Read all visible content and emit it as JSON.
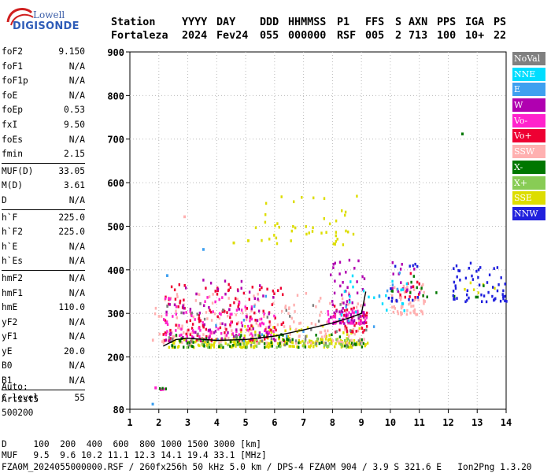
{
  "logo": {
    "line1": "Lowell",
    "line2": "DIGISONDE"
  },
  "header": {
    "labels": [
      "Station",
      "YYYY",
      "DAY",
      "DDD",
      "HHMMSS",
      "P1",
      "FFS",
      "S",
      "AXN",
      "PPS",
      "IGA",
      "PS"
    ],
    "values": [
      "Fortaleza",
      "2024",
      "Fev24",
      "055",
      "000000",
      "RSF",
      "005",
      "2",
      "713",
      "100",
      "10+",
      "22"
    ]
  },
  "params": [
    {
      "key": "foF2",
      "value": "9.150"
    },
    {
      "key": "foF1",
      "value": "N/A"
    },
    {
      "key": "foF1p",
      "value": "N/A"
    },
    {
      "key": "foE",
      "value": "N/A"
    },
    {
      "key": "foEp",
      "value": "0.53"
    },
    {
      "key": "fxI",
      "value": "9.50"
    },
    {
      "key": "foEs",
      "value": "N/A"
    },
    {
      "key": "fmin",
      "value": "2.15"
    },
    {
      "key": "MUF(D)",
      "value": "33.05"
    },
    {
      "key": "M(D)",
      "value": "3.61"
    },
    {
      "key": "D",
      "value": "N/A"
    },
    {
      "key": "h`F",
      "value": "225.0"
    },
    {
      "key": "h`F2",
      "value": "225.0"
    },
    {
      "key": "h`E",
      "value": "N/A"
    },
    {
      "key": "h`Es",
      "value": "N/A"
    },
    {
      "key": "hmF2",
      "value": "N/A"
    },
    {
      "key": "hmF1",
      "value": "N/A"
    },
    {
      "key": "hmE",
      "value": "110.0"
    },
    {
      "key": "yF2",
      "value": "N/A"
    },
    {
      "key": "yF1",
      "value": "N/A"
    },
    {
      "key": "yE",
      "value": "20.0"
    },
    {
      "key": "B0",
      "value": "N/A"
    },
    {
      "key": "B1",
      "value": "N/A"
    },
    {
      "key": "C-level",
      "value": "55"
    }
  ],
  "auto": {
    "line1": "Auto:",
    "line2": "Artist5",
    "line3": "500200"
  },
  "footer": {
    "d_row": "D     100  200  400  600  800 1000 1500 3000 [km]",
    "muf_row": "MUF   9.5  9.6 10.2 11.1 12.3 14.1 19.4 33.1 [MHz]",
    "info_row": "FZA0M_2024055000000.RSF / 260fx256h 50 kHz 5.0 km / DPS-4 FZA0M 904 / 3.9 S 321.6 E   Ion2Png 1.3.20"
  },
  "legend": [
    {
      "label": "NoVal",
      "color": "#808080"
    },
    {
      "label": "NNE",
      "color": "#00ddff"
    },
    {
      "label": "E",
      "color": "#3fa0f0"
    },
    {
      "label": "W",
      "color": "#b000b0"
    },
    {
      "label": "Vo-",
      "color": "#ff22cc"
    },
    {
      "label": "Vo+",
      "color": "#ee0033"
    },
    {
      "label": "SSW",
      "color": "#ffb0b0"
    },
    {
      "label": "X-",
      "color": "#007700"
    },
    {
      "label": "X+",
      "color": "#88cc55"
    },
    {
      "label": "SSE",
      "color": "#dddd00"
    },
    {
      "label": "NNW",
      "color": "#2020dd"
    }
  ],
  "chart_data": {
    "type": "scatter",
    "xlim": [
      1,
      14
    ],
    "ylim": [
      80,
      900
    ],
    "xticks": [
      "1",
      "2",
      "3",
      "4",
      "5",
      "6",
      "7",
      "8",
      "9",
      "10",
      "11",
      "12",
      "13",
      "14"
    ],
    "yticks": [
      "80",
      "200",
      "300",
      "400",
      "500",
      "600",
      "700",
      "800",
      "900"
    ],
    "trace_line": [
      [
        2.15,
        225
      ],
      [
        2.6,
        240
      ],
      [
        3.0,
        243
      ],
      [
        4.0,
        238
      ],
      [
        5.0,
        240
      ],
      [
        6.0,
        248
      ],
      [
        7.0,
        262
      ],
      [
        8.0,
        278
      ],
      [
        8.6,
        290
      ],
      [
        9.0,
        300
      ],
      [
        9.15,
        350
      ]
    ],
    "clusters": [
      {
        "name": "SSE",
        "color": "#dddd00",
        "f": [
          2.3,
          9.2
        ],
        "h": [
          225,
          245
        ],
        "n": 170
      },
      {
        "name": "SSE",
        "color": "#dddd00",
        "f": [
          4.5,
          9.0
        ],
        "h": [
          235,
          275
        ],
        "n": 80
      },
      {
        "name": "SSE",
        "color": "#dddd00",
        "f": [
          5.3,
          8.9
        ],
        "h": [
          460,
          580
        ],
        "n": 45
      },
      {
        "name": "SSE",
        "color": "#dddd00",
        "f": [
          12.4,
          13.6
        ],
        "h": [
          345,
          385
        ],
        "n": 6
      },
      {
        "name": "SSW",
        "color": "#ffb0b0",
        "f": [
          1.7,
          9.1
        ],
        "h": [
          235,
          350
        ],
        "n": 190
      },
      {
        "name": "SSW",
        "color": "#ffb0b0",
        "f": [
          10.0,
          11.2
        ],
        "h": [
          300,
          370
        ],
        "n": 55
      },
      {
        "name": "Vo+",
        "color": "#ee0033",
        "f": [
          2.1,
          6.3
        ],
        "h": [
          240,
          370
        ],
        "n": 130
      },
      {
        "name": "Vo+",
        "color": "#ee0033",
        "f": [
          8.0,
          9.2
        ],
        "h": [
          260,
          320
        ],
        "n": 40
      },
      {
        "name": "Vo+",
        "color": "#ee0033",
        "f": [
          10.3,
          11.1
        ],
        "h": [
          340,
          400
        ],
        "n": 12
      },
      {
        "name": "Vo-",
        "color": "#ff22cc",
        "f": [
          2.1,
          6.0
        ],
        "h": [
          250,
          340
        ],
        "n": 80
      },
      {
        "name": "Vo-",
        "color": "#ff22cc",
        "f": [
          7.8,
          9.2
        ],
        "h": [
          280,
          310
        ],
        "n": 50
      },
      {
        "name": "Vo-",
        "color": "#ff22cc",
        "f": [
          1.8,
          2.2
        ],
        "h": [
          128,
          133
        ],
        "n": 6
      },
      {
        "name": "W",
        "color": "#b000b0",
        "f": [
          2.2,
          6.0
        ],
        "h": [
          240,
          380
        ],
        "n": 70
      },
      {
        "name": "W",
        "color": "#b000b0",
        "f": [
          7.9,
          9.1
        ],
        "h": [
          280,
          430
        ],
        "n": 55
      },
      {
        "name": "W",
        "color": "#b000b0",
        "f": [
          10.0,
          11.0
        ],
        "h": [
          350,
          420
        ],
        "n": 14
      },
      {
        "name": "X-",
        "color": "#007700",
        "f": [
          2.4,
          9.1
        ],
        "h": [
          225,
          255
        ],
        "n": 70
      },
      {
        "name": "X-",
        "color": "#007700",
        "f": [
          2.0,
          2.3
        ],
        "h": [
          130,
          133
        ],
        "n": 3
      },
      {
        "name": "X-",
        "color": "#007700",
        "f": [
          10.0,
          13.6
        ],
        "h": [
          340,
          395
        ],
        "n": 14
      },
      {
        "name": "X+",
        "color": "#88cc55",
        "f": [
          2.4,
          9.0
        ],
        "h": [
          225,
          245
        ],
        "n": 40
      },
      {
        "name": "NNE",
        "color": "#00ddff",
        "f": [
          8.0,
          10.6
        ],
        "h": [
          300,
          410
        ],
        "n": 22
      },
      {
        "name": "E",
        "color": "#3fa0f0",
        "f": [
          2.3,
          10.5
        ],
        "h": [
          240,
          400
        ],
        "n": 18
      },
      {
        "name": "NNW",
        "color": "#2020dd",
        "f": [
          12.1,
          14.0
        ],
        "h": [
          330,
          420
        ],
        "n": 55
      },
      {
        "name": "NNW",
        "color": "#2020dd",
        "f": [
          9.9,
          11.1
        ],
        "h": [
          330,
          420
        ],
        "n": 14
      },
      {
        "name": "NoVal",
        "color": "#808080",
        "f": [
          2.2,
          9.2
        ],
        "h": [
          230,
          330
        ],
        "n": 45
      }
    ],
    "isolated_points": [
      {
        "f": 12.45,
        "h": 715,
        "color": "#007700"
      },
      {
        "f": 1.75,
        "h": 95,
        "color": "#3fa0f0"
      },
      {
        "f": 2.85,
        "h": 525,
        "color": "#ffb0b0"
      },
      {
        "f": 2.25,
        "h": 390,
        "color": "#3fa0f0"
      },
      {
        "f": 4.55,
        "h": 465,
        "color": "#dddd00"
      },
      {
        "f": 3.5,
        "h": 450,
        "color": "#3fa0f0"
      },
      {
        "f": 5.05,
        "h": 470,
        "color": "#dddd00"
      }
    ]
  }
}
